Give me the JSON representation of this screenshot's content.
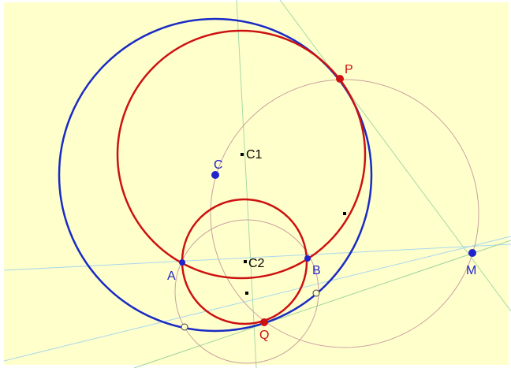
{
  "colors": {
    "background": "#FFFFCC",
    "blue_circle": "#1A2BC4",
    "red_circle": "#CC1111",
    "thin_circle": "#C9A0A0",
    "thin_line_green": "#A8D8A8",
    "thin_line_blue": "#A8D8EC",
    "axis_line": "#9ED49E",
    "label_blue": "#2222CC",
    "label_red": "#CC1111",
    "label_black": "#000000"
  },
  "points": {
    "P": {
      "label": "P"
    },
    "Q": {
      "label": "Q"
    },
    "A": {
      "label": "A"
    },
    "B": {
      "label": "B"
    },
    "C": {
      "label": "C"
    },
    "M": {
      "label": "M"
    },
    "C1": {
      "label": "C1"
    },
    "C2": {
      "label": "C2"
    }
  }
}
